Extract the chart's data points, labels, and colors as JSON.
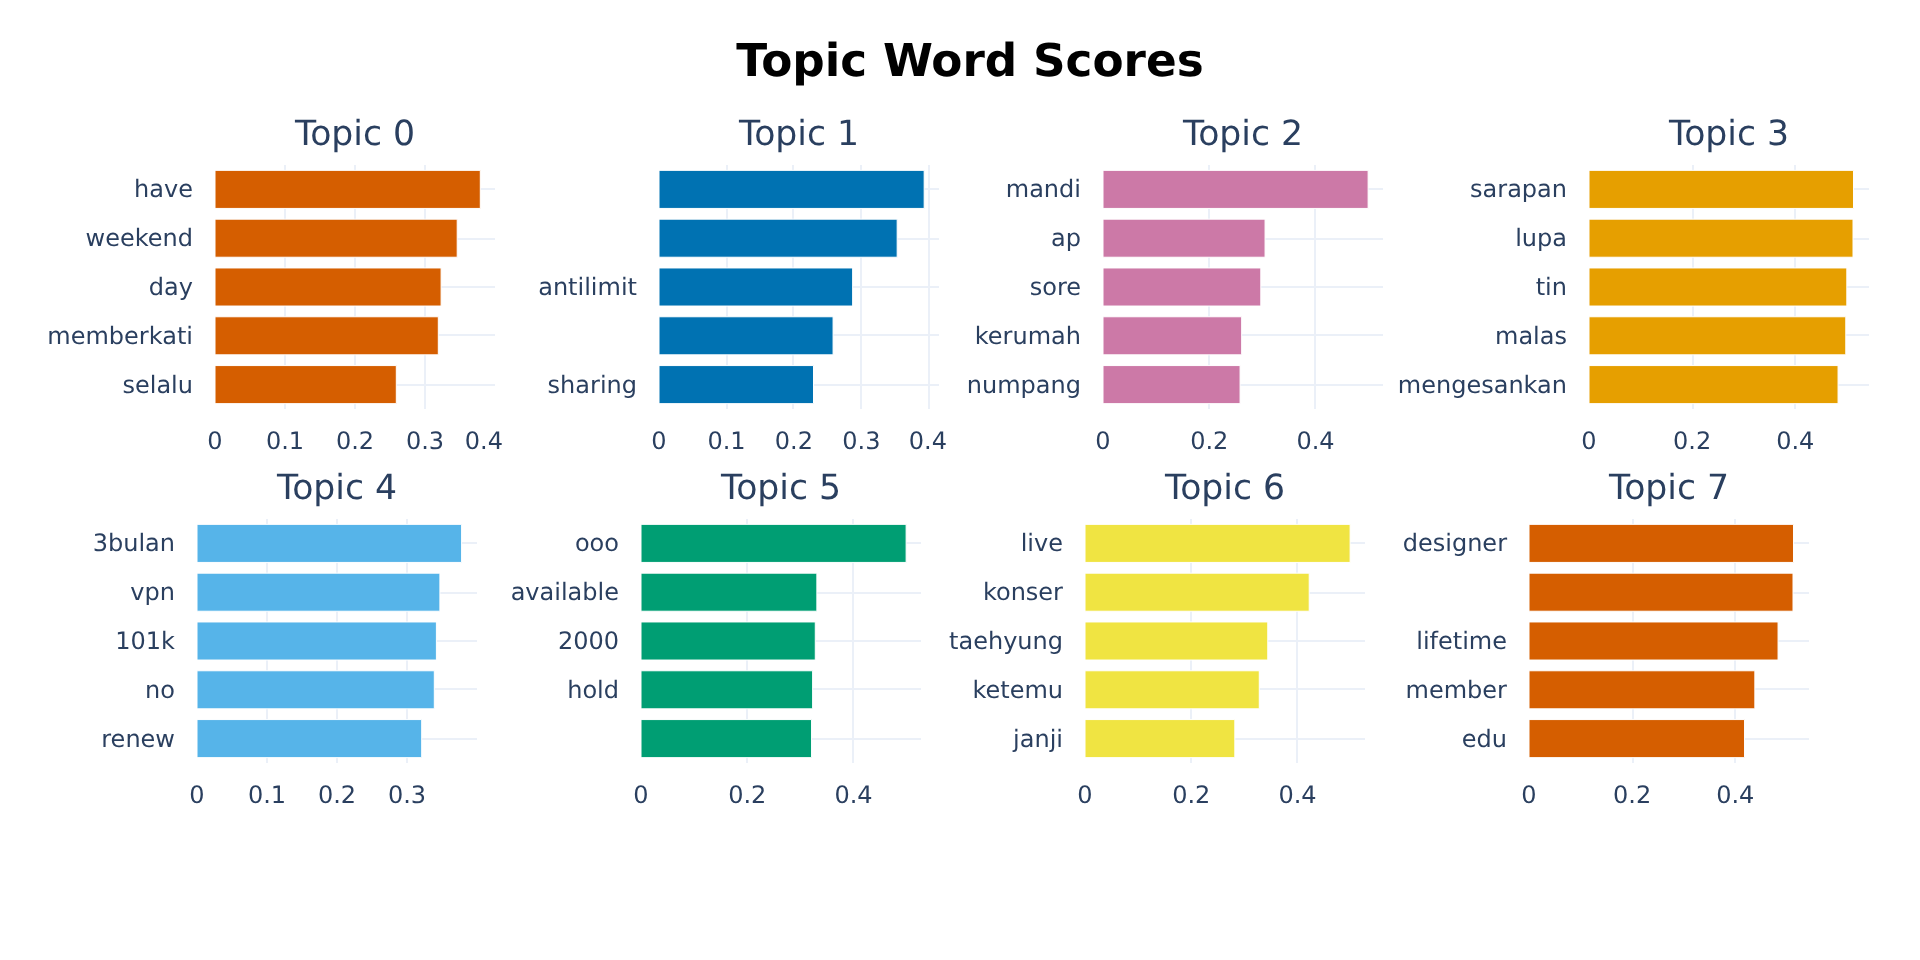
{
  "chart_data": [
    {
      "type": "other",
      "title": "Topic Word Scores"
    },
    {
      "type": "bar",
      "orientation": "horizontal",
      "title": "Topic 0",
      "categories": [
        "have",
        "weekend",
        "day",
        "memberkati",
        "selalu"
      ],
      "values": [
        0.379,
        0.346,
        0.323,
        0.319,
        0.259
      ],
      "color": "#d55e00",
      "xlim": [
        0,
        0.4
      ],
      "xticks": [
        0,
        0.1,
        0.2,
        0.3,
        0.4
      ],
      "grid": true
    },
    {
      "type": "bar",
      "orientation": "horizontal",
      "title": "Topic 1",
      "categories": [
        null,
        null,
        "antilimit",
        null,
        "sharing"
      ],
      "values": [
        0.393,
        0.353,
        0.287,
        0.258,
        0.229
      ],
      "color": "#0072b2",
      "xlim": [
        0,
        0.415
      ],
      "xticks": [
        0,
        0.1,
        0.2,
        0.3,
        0.4
      ],
      "grid": true
    },
    {
      "type": "bar",
      "orientation": "horizontal",
      "title": "Topic 2",
      "categories": [
        "mandi",
        "ap",
        "sore",
        "kerumah",
        "numpang"
      ],
      "values": [
        0.499,
        0.305,
        0.297,
        0.261,
        0.258
      ],
      "color": "#cc79a7",
      "xlim": [
        0,
        0.527
      ],
      "xticks": [
        0,
        0.2,
        0.4
      ],
      "grid": true
    },
    {
      "type": "bar",
      "orientation": "horizontal",
      "title": "Topic 3",
      "categories": [
        "sarapan",
        "lupa",
        "tin",
        "malas",
        "mengesankan"
      ],
      "values": [
        0.513,
        0.512,
        0.5,
        0.498,
        0.483
      ],
      "color": "#e69f00",
      "xlim": [
        0,
        0.543
      ],
      "xticks": [
        0,
        0.2,
        0.4
      ],
      "grid": true
    },
    {
      "type": "bar",
      "orientation": "horizontal",
      "title": "Topic 4",
      "categories": [
        "3bulan",
        "vpn",
        "101k",
        "no",
        "renew"
      ],
      "values": [
        0.378,
        0.347,
        0.342,
        0.339,
        0.321
      ],
      "color": "#56b4e9",
      "xlim": [
        0,
        0.4
      ],
      "xticks": [
        0,
        0.1,
        0.2,
        0.3
      ],
      "grid": true
    },
    {
      "type": "bar",
      "orientation": "horizontal",
      "title": "Topic 5",
      "categories": [
        "ooo",
        "available",
        "2000",
        "hold",
        null
      ],
      "values": [
        0.499,
        0.331,
        0.328,
        0.323,
        0.321
      ],
      "color": "#009e73",
      "xlim": [
        0,
        0.527
      ],
      "xticks": [
        0,
        0.2,
        0.4
      ],
      "grid": true
    },
    {
      "type": "bar",
      "orientation": "horizontal",
      "title": "Topic 6",
      "categories": [
        "live",
        "konser",
        "taehyung",
        "ketemu",
        "janji"
      ],
      "values": [
        0.499,
        0.422,
        0.344,
        0.328,
        0.282
      ],
      "color": "#f0e442",
      "xlim": [
        0,
        0.527
      ],
      "xticks": [
        0,
        0.2,
        0.4
      ],
      "grid": true
    },
    {
      "type": "bar",
      "orientation": "horizontal",
      "title": "Topic 7",
      "categories": [
        "designer",
        null,
        "lifetime",
        "member",
        "edu"
      ],
      "values": [
        0.513,
        0.512,
        0.483,
        0.438,
        0.418
      ],
      "color": "#d55e00",
      "xlim": [
        0,
        0.543
      ],
      "xticks": [
        0,
        0.2,
        0.4
      ],
      "grid": true
    }
  ]
}
